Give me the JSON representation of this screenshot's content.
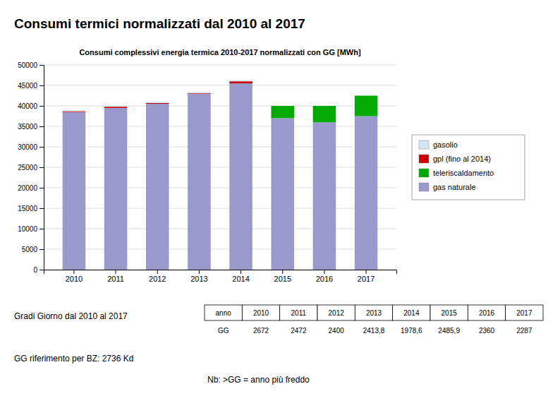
{
  "chart_data": {
    "type": "bar",
    "stacked": true,
    "title": "Consumi termici normalizzati dal 2010 al 2017",
    "subtitle": "Consumi complessivi energia termica 2010-2017 normalizzati con GG [MWh]",
    "categories": [
      "2010",
      "2011",
      "2012",
      "2013",
      "2014",
      "2015",
      "2016",
      "2017"
    ],
    "series": [
      {
        "name": "gas naturale",
        "color": "#9999cc",
        "values": [
          38500,
          39500,
          40500,
          43000,
          45500,
          37000,
          36000,
          37500
        ]
      },
      {
        "name": "teleriscaldamento",
        "color": "#00aa00",
        "values": [
          0,
          0,
          0,
          0,
          0,
          3000,
          4000,
          5000
        ]
      },
      {
        "name": "gpl (fino al 2014)",
        "color": "#cc0000",
        "values": [
          200,
          300,
          200,
          150,
          500,
          0,
          0,
          0
        ]
      },
      {
        "name": "gasolio",
        "color": "#d4e6f1",
        "values": [
          300,
          200,
          300,
          200,
          300,
          0,
          0,
          0
        ]
      }
    ],
    "ylim": [
      0,
      50000
    ],
    "yticks": [
      0,
      5000,
      10000,
      15000,
      20000,
      25000,
      30000,
      35000,
      40000,
      45000,
      50000
    ],
    "grid": true,
    "legend": "right",
    "table": {
      "header": [
        "anno",
        "2010",
        "2011",
        "2012",
        "2013",
        "2014",
        "2015",
        "2016",
        "2017"
      ],
      "rows": [
        [
          "GG",
          "2672",
          "2472",
          "2400",
          "2413,8",
          "1978,6",
          "2485,9",
          "2360",
          "2287"
        ]
      ]
    },
    "annotations": [
      "Gradi Giorno dal 2010 al 2017",
      "GG riferimento per BZ: 2736 Kd",
      "Nb: >GG = anno più freddo"
    ]
  }
}
